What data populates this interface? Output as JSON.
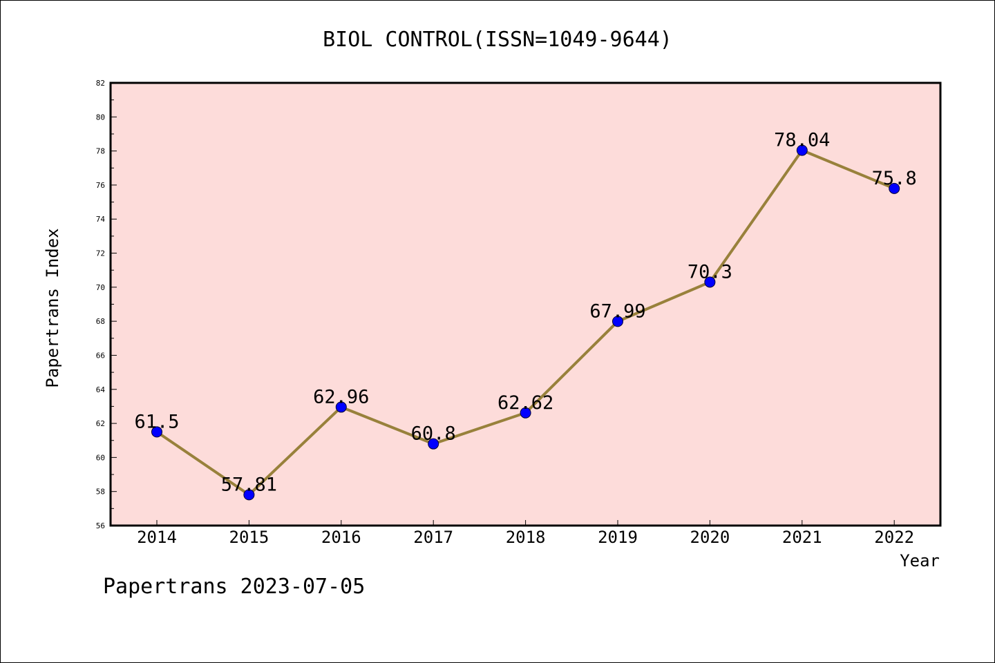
{
  "footer": {
    "note": "Papertrans 2023-07-05"
  },
  "colors": {
    "plot_background": "#FDDCDA",
    "line": "#98813B",
    "marker": "#0000FF",
    "axes": "#000000"
  },
  "chart_data": {
    "type": "line",
    "title": "BIOL CONTROL(ISSN=1049-9644)",
    "xlabel": "Year",
    "ylabel": "Papertrans Index",
    "categories": [
      "2014",
      "2015",
      "2016",
      "2017",
      "2018",
      "2019",
      "2020",
      "2021",
      "2022"
    ],
    "series": [
      {
        "values": [
          61.5,
          57.81,
          62.96,
          60.8,
          62.62,
          67.99,
          70.3,
          78.04,
          75.8
        ]
      }
    ],
    "data_labels": [
      "61.5",
      "57.81",
      "62.96",
      "60.8",
      "62.62",
      "67.99",
      "70.3",
      "78.04",
      "75.8"
    ],
    "ylim": [
      56,
      82
    ],
    "yticks": [
      56,
      58,
      60,
      62,
      64,
      66,
      68,
      70,
      72,
      74,
      76,
      78,
      80,
      82
    ],
    "grid": false,
    "legend": "none"
  }
}
